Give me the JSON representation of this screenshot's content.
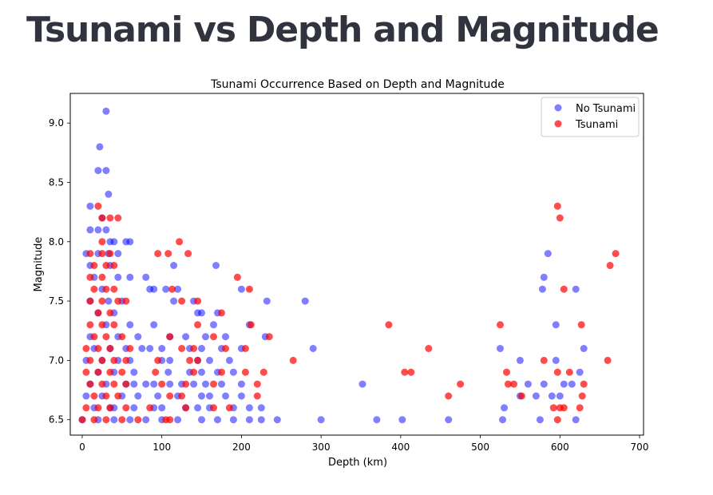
{
  "page": {
    "title": "Tsunami vs Depth and Magnitude"
  },
  "chart_data": {
    "type": "scatter",
    "title": "Tsunami Occurrence Based on Depth and Magnitude",
    "xlabel": "Depth (km)",
    "ylabel": "Magnitude",
    "xlim": [
      -15,
      705
    ],
    "ylim": [
      6.37,
      9.25
    ],
    "xticks": [
      0,
      100,
      200,
      300,
      400,
      500,
      600,
      700
    ],
    "yticks": [
      6.5,
      7.0,
      7.5,
      8.0,
      8.5,
      9.0
    ],
    "ytick_labels": [
      "6.5",
      "7.0",
      "7.5",
      "8.0",
      "8.5",
      "9.0"
    ],
    "grid": false,
    "legend_position": "top-right",
    "series": [
      {
        "name": "No Tsunami",
        "color": "#0000ff",
        "opacity": 0.5,
        "points": [
          [
            30,
            9.1
          ],
          [
            22,
            8.8
          ],
          [
            20,
            8.6
          ],
          [
            30,
            8.6
          ],
          [
            33,
            8.4
          ],
          [
            10,
            8.3
          ],
          [
            25,
            8.2
          ],
          [
            30,
            8.1
          ],
          [
            10,
            8.1
          ],
          [
            20,
            8.1
          ],
          [
            40,
            8.0
          ],
          [
            55,
            8.0
          ],
          [
            60,
            8.0
          ],
          [
            35,
            8.0
          ],
          [
            5,
            7.9
          ],
          [
            20,
            7.9
          ],
          [
            33,
            7.9
          ],
          [
            45,
            7.9
          ],
          [
            115,
            7.8
          ],
          [
            168,
            7.8
          ],
          [
            10,
            7.8
          ],
          [
            35,
            7.8
          ],
          [
            60,
            7.7
          ],
          [
            80,
            7.7
          ],
          [
            15,
            7.7
          ],
          [
            45,
            7.7
          ],
          [
            25,
            7.6
          ],
          [
            85,
            7.6
          ],
          [
            90,
            7.6
          ],
          [
            105,
            7.6
          ],
          [
            120,
            7.6
          ],
          [
            200,
            7.6
          ],
          [
            10,
            7.5
          ],
          [
            33,
            7.5
          ],
          [
            50,
            7.5
          ],
          [
            115,
            7.5
          ],
          [
            140,
            7.5
          ],
          [
            232,
            7.5
          ],
          [
            280,
            7.5
          ],
          [
            145,
            7.4
          ],
          [
            150,
            7.4
          ],
          [
            170,
            7.4
          ],
          [
            20,
            7.4
          ],
          [
            40,
            7.4
          ],
          [
            90,
            7.3
          ],
          [
            165,
            7.3
          ],
          [
            210,
            7.3
          ],
          [
            30,
            7.3
          ],
          [
            60,
            7.3
          ],
          [
            70,
            7.2
          ],
          [
            110,
            7.2
          ],
          [
            130,
            7.2
          ],
          [
            155,
            7.2
          ],
          [
            180,
            7.2
          ],
          [
            230,
            7.2
          ],
          [
            10,
            7.2
          ],
          [
            45,
            7.2
          ],
          [
            75,
            7.1
          ],
          [
            85,
            7.1
          ],
          [
            100,
            7.1
          ],
          [
            135,
            7.1
          ],
          [
            150,
            7.1
          ],
          [
            175,
            7.1
          ],
          [
            200,
            7.1
          ],
          [
            290,
            7.1
          ],
          [
            15,
            7.1
          ],
          [
            35,
            7.1
          ],
          [
            55,
            7.1
          ],
          [
            60,
            7.0
          ],
          [
            100,
            7.0
          ],
          [
            110,
            7.0
          ],
          [
            145,
            7.0
          ],
          [
            160,
            7.0
          ],
          [
            185,
            7.0
          ],
          [
            5,
            7.0
          ],
          [
            25,
            7.0
          ],
          [
            45,
            7.0
          ],
          [
            65,
            6.9
          ],
          [
            108,
            6.9
          ],
          [
            135,
            6.9
          ],
          [
            150,
            6.9
          ],
          [
            170,
            6.9
          ],
          [
            190,
            6.9
          ],
          [
            20,
            6.9
          ],
          [
            40,
            6.9
          ],
          [
            55,
            6.8
          ],
          [
            65,
            6.8
          ],
          [
            80,
            6.8
          ],
          [
            90,
            6.8
          ],
          [
            110,
            6.8
          ],
          [
            125,
            6.8
          ],
          [
            140,
            6.8
          ],
          [
            155,
            6.8
          ],
          [
            175,
            6.8
          ],
          [
            200,
            6.8
          ],
          [
            352,
            6.8
          ],
          [
            10,
            6.8
          ],
          [
            30,
            6.8
          ],
          [
            50,
            6.7
          ],
          [
            70,
            6.7
          ],
          [
            95,
            6.7
          ],
          [
            120,
            6.7
          ],
          [
            150,
            6.7
          ],
          [
            160,
            6.7
          ],
          [
            180,
            6.7
          ],
          [
            200,
            6.7
          ],
          [
            5,
            6.7
          ],
          [
            25,
            6.7
          ],
          [
            40,
            6.6
          ],
          [
            65,
            6.6
          ],
          [
            90,
            6.6
          ],
          [
            100,
            6.6
          ],
          [
            130,
            6.6
          ],
          [
            145,
            6.6
          ],
          [
            160,
            6.6
          ],
          [
            190,
            6.6
          ],
          [
            210,
            6.6
          ],
          [
            225,
            6.6
          ],
          [
            15,
            6.6
          ],
          [
            35,
            6.6
          ],
          [
            0,
            6.5
          ],
          [
            20,
            6.5
          ],
          [
            40,
            6.5
          ],
          [
            60,
            6.5
          ],
          [
            80,
            6.5
          ],
          [
            100,
            6.5
          ],
          [
            120,
            6.5
          ],
          [
            150,
            6.5
          ],
          [
            170,
            6.5
          ],
          [
            190,
            6.5
          ],
          [
            210,
            6.5
          ],
          [
            225,
            6.5
          ],
          [
            245,
            6.5
          ],
          [
            300,
            6.5
          ],
          [
            370,
            6.5
          ],
          [
            402,
            6.5
          ],
          [
            460,
            6.5
          ],
          [
            528,
            6.5
          ],
          [
            575,
            6.5
          ],
          [
            620,
            6.5
          ],
          [
            530,
            6.6
          ],
          [
            550,
            6.7
          ],
          [
            570,
            6.7
          ],
          [
            590,
            6.7
          ],
          [
            600,
            6.7
          ],
          [
            605,
            6.8
          ],
          [
            560,
            6.8
          ],
          [
            580,
            6.8
          ],
          [
            615,
            6.8
          ],
          [
            525,
            7.1
          ],
          [
            630,
            7.1
          ],
          [
            550,
            7.0
          ],
          [
            595,
            7.0
          ],
          [
            625,
            6.9
          ],
          [
            595,
            7.3
          ],
          [
            578,
            7.6
          ],
          [
            580,
            7.7
          ],
          [
            620,
            7.6
          ],
          [
            585,
            7.9
          ]
        ]
      },
      {
        "name": "Tsunami",
        "color": "#ff0000",
        "opacity": 0.7,
        "points": [
          [
            20,
            8.3
          ],
          [
            25,
            8.2
          ],
          [
            35,
            8.2
          ],
          [
            45,
            8.2
          ],
          [
            25,
            8.0
          ],
          [
            122,
            8.0
          ],
          [
            10,
            7.9
          ],
          [
            25,
            7.9
          ],
          [
            35,
            7.9
          ],
          [
            95,
            7.9
          ],
          [
            108,
            7.9
          ],
          [
            133,
            7.9
          ],
          [
            15,
            7.8
          ],
          [
            30,
            7.8
          ],
          [
            40,
            7.8
          ],
          [
            10,
            7.7
          ],
          [
            25,
            7.7
          ],
          [
            195,
            7.7
          ],
          [
            15,
            7.6
          ],
          [
            30,
            7.6
          ],
          [
            40,
            7.6
          ],
          [
            113,
            7.6
          ],
          [
            210,
            7.6
          ],
          [
            10,
            7.5
          ],
          [
            25,
            7.5
          ],
          [
            45,
            7.5
          ],
          [
            55,
            7.5
          ],
          [
            125,
            7.5
          ],
          [
            145,
            7.5
          ],
          [
            20,
            7.4
          ],
          [
            35,
            7.4
          ],
          [
            175,
            7.4
          ],
          [
            10,
            7.3
          ],
          [
            25,
            7.3
          ],
          [
            40,
            7.3
          ],
          [
            145,
            7.3
          ],
          [
            212,
            7.3
          ],
          [
            15,
            7.2
          ],
          [
            30,
            7.2
          ],
          [
            50,
            7.2
          ],
          [
            110,
            7.2
          ],
          [
            165,
            7.2
          ],
          [
            235,
            7.2
          ],
          [
            5,
            7.1
          ],
          [
            20,
            7.1
          ],
          [
            35,
            7.1
          ],
          [
            60,
            7.1
          ],
          [
            125,
            7.1
          ],
          [
            140,
            7.1
          ],
          [
            180,
            7.1
          ],
          [
            205,
            7.1
          ],
          [
            10,
            7.0
          ],
          [
            25,
            7.0
          ],
          [
            40,
            7.0
          ],
          [
            55,
            7.0
          ],
          [
            95,
            7.0
          ],
          [
            135,
            7.0
          ],
          [
            145,
            7.0
          ],
          [
            265,
            7.0
          ],
          [
            5,
            6.9
          ],
          [
            20,
            6.9
          ],
          [
            35,
            6.9
          ],
          [
            50,
            6.9
          ],
          [
            92,
            6.9
          ],
          [
            140,
            6.9
          ],
          [
            175,
            6.9
          ],
          [
            205,
            6.9
          ],
          [
            228,
            6.9
          ],
          [
            10,
            6.8
          ],
          [
            25,
            6.8
          ],
          [
            40,
            6.8
          ],
          [
            55,
            6.8
          ],
          [
            100,
            6.8
          ],
          [
            130,
            6.8
          ],
          [
            165,
            6.8
          ],
          [
            220,
            6.8
          ],
          [
            15,
            6.7
          ],
          [
            30,
            6.7
          ],
          [
            45,
            6.7
          ],
          [
            110,
            6.7
          ],
          [
            125,
            6.7
          ],
          [
            220,
            6.7
          ],
          [
            5,
            6.6
          ],
          [
            20,
            6.6
          ],
          [
            35,
            6.6
          ],
          [
            55,
            6.6
          ],
          [
            85,
            6.6
          ],
          [
            130,
            6.6
          ],
          [
            165,
            6.6
          ],
          [
            185,
            6.6
          ],
          [
            0,
            6.5
          ],
          [
            15,
            6.5
          ],
          [
            30,
            6.5
          ],
          [
            50,
            6.5
          ],
          [
            70,
            6.5
          ],
          [
            105,
            6.5
          ],
          [
            110,
            6.5
          ],
          [
            385,
            7.3
          ],
          [
            435,
            7.1
          ],
          [
            405,
            6.9
          ],
          [
            413,
            6.9
          ],
          [
            475,
            6.8
          ],
          [
            460,
            6.7
          ],
          [
            525,
            7.3
          ],
          [
            533,
            6.9
          ],
          [
            535,
            6.8
          ],
          [
            542,
            6.8
          ],
          [
            552,
            6.7
          ],
          [
            580,
            7.0
          ],
          [
            597,
            6.9
          ],
          [
            592,
            6.6
          ],
          [
            597,
            6.5
          ],
          [
            600,
            6.6
          ],
          [
            605,
            6.6
          ],
          [
            612,
            6.9
          ],
          [
            625,
            6.6
          ],
          [
            628,
            6.7
          ],
          [
            630,
            6.8
          ],
          [
            627,
            7.3
          ],
          [
            605,
            7.6
          ],
          [
            597,
            8.3
          ],
          [
            600,
            8.2
          ],
          [
            660,
            7.0
          ],
          [
            663,
            7.8
          ],
          [
            670,
            7.9
          ]
        ]
      }
    ]
  }
}
